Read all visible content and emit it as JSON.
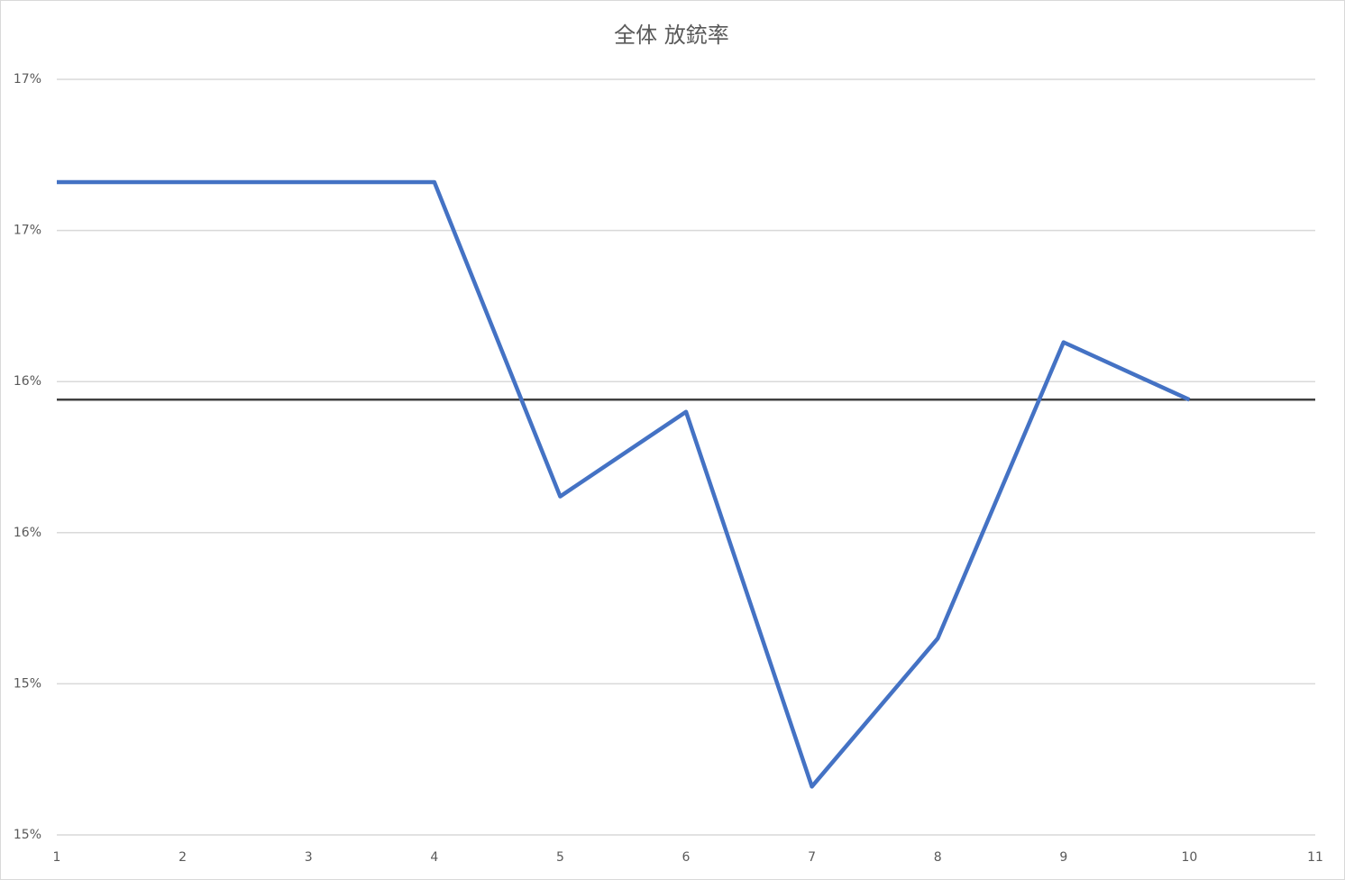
{
  "chart_data": {
    "type": "line",
    "title": "全体 放銃率",
    "x": [
      1,
      2,
      3,
      4,
      5,
      6,
      7,
      8,
      9,
      10
    ],
    "series": [
      {
        "color": "#4472c4",
        "values": [
          16.66,
          16.66,
          16.66,
          16.66,
          15.62,
          15.9,
          14.66,
          15.15,
          16.13,
          15.94
        ]
      }
    ],
    "reference_line": {
      "value": 15.94,
      "color": "#404040"
    },
    "xlim": [
      1,
      11
    ],
    "xticks": [
      1,
      2,
      3,
      4,
      5,
      6,
      7,
      8,
      9,
      10,
      11
    ],
    "ylim": [
      14.5,
      17
    ],
    "yticks": [
      {
        "value": 14.5,
        "label": "15%"
      },
      {
        "value": 15,
        "label": "15%"
      },
      {
        "value": 15.5,
        "label": "16%"
      },
      {
        "value": 16,
        "label": "16%"
      },
      {
        "value": 16.5,
        "label": "17%"
      },
      {
        "value": 17,
        "label": "17%"
      }
    ],
    "grid": true
  }
}
